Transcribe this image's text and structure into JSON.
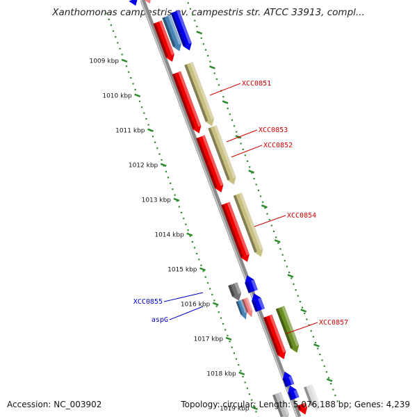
{
  "title": "Xanthomonas campestris pv. campestris str. ATCC 33913, compl...",
  "footer": {
    "accession": "Accession: NC_003902",
    "summary": "Topology: circular; Length: 5,076,188 bp; Genes: 4,239"
  },
  "ticks": [
    "1009 kbp",
    "1010 kbp",
    "1011 kbp",
    "1012 kbp",
    "1013 kbp",
    "1014 kbp",
    "1015 kbp",
    "1016 kbp",
    "1017 kbp",
    "1018 kbp",
    "1019 kbp"
  ],
  "gene_labels": [
    {
      "text": "XCC0851",
      "color": "#cc0000"
    },
    {
      "text": "XCC0853",
      "color": "#cc0000"
    },
    {
      "text": "XCC0852",
      "color": "#cc0000"
    },
    {
      "text": "XCC0854",
      "color": "#cc0000"
    },
    {
      "text": "XCC0855",
      "color": "#0000cc"
    },
    {
      "text": "aspG",
      "color": "#0000cc"
    },
    {
      "text": "XCC0857",
      "color": "#cc0000"
    }
  ],
  "colors": {
    "backbone": "#8a8a8a",
    "tick_dots": "#2e8b2e",
    "cds_forward": "#ee0000",
    "cds_reverse": "#0000ee",
    "khaki": "#c8c080",
    "olive": "#6b8e23",
    "steel": "#4682b4",
    "gray": "#707070",
    "pink": "#f08080"
  }
}
